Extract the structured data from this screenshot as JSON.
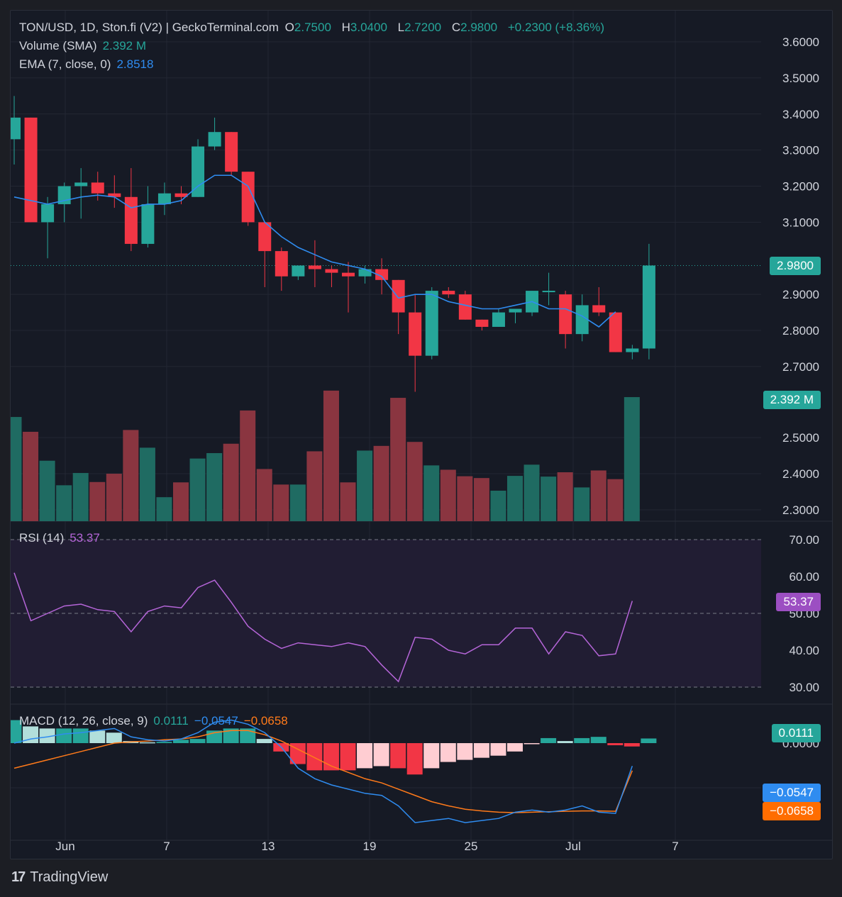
{
  "header": {
    "title": "TON/USD, 1D, Ston.fi (V2) | GeckoTerminal.com",
    "o_label": "O",
    "o_value": "2.7500",
    "h_label": "H",
    "h_value": "3.0400",
    "l_label": "L",
    "l_value": "2.7200",
    "c_label": "C",
    "c_value": "2.9800",
    "change": "+0.2300 (+8.36%)"
  },
  "volume_legend": {
    "label": "Volume (SMA)",
    "value": "2.392 M"
  },
  "ema_legend": {
    "label": "EMA (7, close, 0)",
    "value": "2.8518"
  },
  "rsi_legend": {
    "label": "RSI (14)",
    "value": "53.37"
  },
  "macd_legend": {
    "label": "MACD (12, 26, close, 9)",
    "hist": "0.0111",
    "macd": "−0.0547",
    "signal": "−0.0658"
  },
  "badges": {
    "price": "2.9800",
    "volume": "2.392 M",
    "rsi": "53.37",
    "macd_hist": "0.0111",
    "macd": "−0.0547",
    "signal": "−0.0658"
  },
  "colors": {
    "up": "#26a69a",
    "down": "#f23645",
    "vol_up": "#1f6b62",
    "vol_down": "#8a3540",
    "ema": "#2f8cf0",
    "rsi": "#b565d8",
    "macd": "#2f8cf0",
    "signal": "#ff7a1a",
    "hist_up_strong": "#26a69a",
    "hist_up_weak": "#b2dfdb",
    "hist_down_strong": "#f23645",
    "hist_down_weak": "#ffcdd2"
  },
  "footer": {
    "brand": "TradingView"
  },
  "chart_data": {
    "type": "candlestick",
    "x_tick_labels": [
      "Jun",
      "7",
      "13",
      "19",
      "25",
      "Jul",
      "7"
    ],
    "price_axis": {
      "ticks": [
        "3.6000",
        "3.5000",
        "3.4000",
        "3.3000",
        "3.2000",
        "3.1000",
        "2.9000",
        "2.8000",
        "2.7000"
      ],
      "range": [
        2.66,
        3.64
      ]
    },
    "volume_axis": {
      "ticks": [
        "2.5000",
        "2.4000",
        "2.3000"
      ],
      "range": [
        2.266,
        2.62
      ]
    },
    "candles": [
      {
        "o": 3.33,
        "h": 3.45,
        "l": 3.26,
        "c": 3.39
      },
      {
        "o": 3.39,
        "h": 3.39,
        "l": 3.1,
        "c": 3.1
      },
      {
        "o": 3.1,
        "h": 3.17,
        "l": 3.0,
        "c": 3.15
      },
      {
        "o": 3.15,
        "h": 3.21,
        "l": 3.1,
        "c": 3.2
      },
      {
        "o": 3.2,
        "h": 3.25,
        "l": 3.11,
        "c": 3.21
      },
      {
        "o": 3.21,
        "h": 3.24,
        "l": 3.16,
        "c": 3.18
      },
      {
        "o": 3.18,
        "h": 3.23,
        "l": 3.14,
        "c": 3.17
      },
      {
        "o": 3.17,
        "h": 3.25,
        "l": 3.02,
        "c": 3.04
      },
      {
        "o": 3.04,
        "h": 3.2,
        "l": 3.03,
        "c": 3.15
      },
      {
        "o": 3.15,
        "h": 3.21,
        "l": 3.12,
        "c": 3.18
      },
      {
        "o": 3.18,
        "h": 3.2,
        "l": 3.15,
        "c": 3.17
      },
      {
        "o": 3.17,
        "h": 3.33,
        "l": 3.17,
        "c": 3.31
      },
      {
        "o": 3.31,
        "h": 3.39,
        "l": 3.3,
        "c": 3.35
      },
      {
        "o": 3.35,
        "h": 3.35,
        "l": 3.23,
        "c": 3.24
      },
      {
        "o": 3.24,
        "h": 3.24,
        "l": 3.09,
        "c": 3.1
      },
      {
        "o": 3.1,
        "h": 3.1,
        "l": 2.92,
        "c": 3.02
      },
      {
        "o": 3.02,
        "h": 3.03,
        "l": 2.91,
        "c": 2.95
      },
      {
        "o": 2.95,
        "h": 2.98,
        "l": 2.94,
        "c": 2.98
      },
      {
        "o": 2.98,
        "h": 3.05,
        "l": 2.92,
        "c": 2.97
      },
      {
        "o": 2.97,
        "h": 2.98,
        "l": 2.92,
        "c": 2.96
      },
      {
        "o": 2.96,
        "h": 2.99,
        "l": 2.85,
        "c": 2.95
      },
      {
        "o": 2.95,
        "h": 2.98,
        "l": 2.93,
        "c": 2.97
      },
      {
        "o": 2.97,
        "h": 3.0,
        "l": 2.9,
        "c": 2.94
      },
      {
        "o": 2.94,
        "h": 2.94,
        "l": 2.79,
        "c": 2.85
      },
      {
        "o": 2.85,
        "h": 2.9,
        "l": 2.63,
        "c": 2.73
      },
      {
        "o": 2.73,
        "h": 2.92,
        "l": 2.72,
        "c": 2.91
      },
      {
        "o": 2.91,
        "h": 2.92,
        "l": 2.89,
        "c": 2.9
      },
      {
        "o": 2.9,
        "h": 2.91,
        "l": 2.83,
        "c": 2.83
      },
      {
        "o": 2.83,
        "h": 2.83,
        "l": 2.8,
        "c": 2.81
      },
      {
        "o": 2.81,
        "h": 2.86,
        "l": 2.81,
        "c": 2.85
      },
      {
        "o": 2.85,
        "h": 2.86,
        "l": 2.82,
        "c": 2.86
      },
      {
        "o": 2.85,
        "h": 2.91,
        "l": 2.84,
        "c": 2.91
      },
      {
        "o": 2.91,
        "h": 2.96,
        "l": 2.87,
        "c": 2.91
      },
      {
        "o": 2.9,
        "h": 2.91,
        "l": 2.75,
        "c": 2.79
      },
      {
        "o": 2.79,
        "h": 2.9,
        "l": 2.77,
        "c": 2.87
      },
      {
        "o": 2.87,
        "h": 2.92,
        "l": 2.84,
        "c": 2.85
      },
      {
        "o": 2.85,
        "h": 2.85,
        "l": 2.74,
        "c": 2.74
      },
      {
        "o": 2.74,
        "h": 2.76,
        "l": 2.72,
        "c": 2.75
      },
      {
        "o": 2.75,
        "h": 3.04,
        "l": 2.72,
        "c": 2.98
      }
    ],
    "volume": [
      2.557,
      2.516,
      2.436,
      2.368,
      2.402,
      2.377,
      2.4,
      2.521,
      2.472,
      2.335,
      2.376,
      2.442,
      2.457,
      2.483,
      2.575,
      2.413,
      2.37,
      2.37,
      2.462,
      2.63,
      2.376,
      2.464,
      2.477,
      2.61,
      2.488,
      2.423,
      2.411,
      2.393,
      2.388,
      2.353,
      2.394,
      2.425,
      2.392,
      2.404,
      2.362,
      2.409,
      2.385,
      2.612
    ],
    "ema": [
      3.17,
      3.16,
      3.15,
      3.16,
      3.17,
      3.175,
      3.17,
      3.14,
      3.15,
      3.15,
      3.16,
      3.2,
      3.23,
      3.23,
      3.2,
      3.1,
      3.06,
      3.03,
      3.01,
      2.99,
      2.98,
      2.97,
      2.95,
      2.89,
      2.9,
      2.9,
      2.88,
      2.87,
      2.86,
      2.86,
      2.87,
      2.88,
      2.86,
      2.86,
      2.84,
      2.81,
      2.8518
    ],
    "rsi_axis": {
      "ticks": [
        "70.00",
        "60.00",
        "50.00",
        "40.00",
        "30.00"
      ],
      "range": [
        27,
        75
      ],
      "band": [
        30,
        70
      ],
      "mid": 50
    },
    "rsi": [
      61,
      48,
      50,
      52,
      52.5,
      51,
      50.5,
      45,
      50.5,
      52,
      51.5,
      57,
      59,
      53,
      46.5,
      43,
      40.5,
      42,
      41.5,
      41,
      42,
      41,
      36,
      31.5,
      43.5,
      43,
      40,
      39,
      41.5,
      41.5,
      46,
      46,
      39,
      45,
      44,
      38.5,
      39,
      53.37
    ],
    "macd_axis": {
      "ticks": [
        "0.0000"
      ],
      "range": [
        -0.21,
        0.07
      ]
    },
    "macd_hist": [
      0.055,
      0.04,
      0.035,
      0.035,
      0.035,
      0.03,
      0.025,
      0.005,
      0.002,
      0.003,
      0.008,
      0.01,
      0.03,
      0.035,
      0.035,
      0.01,
      -0.02,
      -0.05,
      -0.065,
      -0.065,
      -0.065,
      -0.06,
      -0.055,
      -0.06,
      -0.075,
      -0.06,
      -0.045,
      -0.04,
      -0.035,
      -0.03,
      -0.02,
      -0.002,
      0.012,
      0.005,
      0.012,
      0.015,
      -0.005,
      -0.008,
      0.0111
    ],
    "macd_line": [
      0.0,
      0.01,
      0.015,
      0.022,
      0.025,
      0.03,
      0.035,
      0.015,
      0.008,
      0.005,
      0.01,
      0.025,
      0.05,
      0.055,
      0.045,
      0.025,
      -0.01,
      -0.06,
      -0.085,
      -0.1,
      -0.11,
      -0.12,
      -0.125,
      -0.15,
      -0.19,
      -0.185,
      -0.18,
      -0.19,
      -0.185,
      -0.18,
      -0.165,
      -0.16,
      -0.165,
      -0.16,
      -0.15,
      -0.165,
      -0.168,
      -0.0547
    ],
    "signal_line": [
      -0.06,
      -0.05,
      -0.04,
      -0.03,
      -0.02,
      -0.01,
      0.0,
      0.003,
      0.005,
      0.008,
      0.01,
      0.015,
      0.025,
      0.03,
      0.03,
      0.02,
      0.005,
      -0.015,
      -0.035,
      -0.055,
      -0.07,
      -0.085,
      -0.095,
      -0.11,
      -0.125,
      -0.14,
      -0.15,
      -0.158,
      -0.162,
      -0.165,
      -0.166,
      -0.165,
      -0.164,
      -0.163,
      -0.162,
      -0.162,
      -0.163,
      -0.0658
    ]
  }
}
